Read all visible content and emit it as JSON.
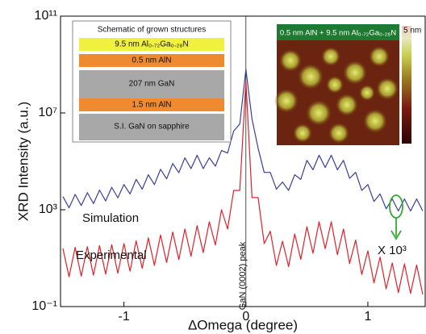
{
  "chart_data": {
    "type": "line",
    "x_label": "ΔOmega (degree)",
    "y_label": "XRD Intensity (a.u.)",
    "log_y": true,
    "xlim": [
      -1.52,
      1.47
    ],
    "xticks": [
      -1,
      0,
      1
    ],
    "ylim": [
      0.1,
      100000000000.0
    ],
    "yticks": [
      {
        "value": 100000000000.0,
        "label": "10¹¹"
      },
      {
        "value": 10000000.0,
        "label": "10⁷"
      },
      {
        "value": 1000,
        "label": "10³"
      },
      {
        "value": 0.1,
        "label": "10⁻¹"
      }
    ],
    "x": [
      -1.5,
      -1.45,
      -1.4,
      -1.35,
      -1.3,
      -1.25,
      -1.2,
      -1.15,
      -1.1,
      -1.05,
      -1.0,
      -0.95,
      -0.9,
      -0.85,
      -0.8,
      -0.75,
      -0.7,
      -0.65,
      -0.6,
      -0.55,
      -0.5,
      -0.45,
      -0.4,
      -0.35,
      -0.3,
      -0.25,
      -0.2,
      -0.15,
      -0.1,
      -0.05,
      0,
      0.05,
      0.1,
      0.15,
      0.2,
      0.25,
      0.3,
      0.35,
      0.4,
      0.45,
      0.5,
      0.55,
      0.6,
      0.65,
      0.7,
      0.75,
      0.8,
      0.85,
      0.9,
      0.95,
      1.0,
      1.05,
      1.1,
      1.15,
      1.2,
      1.25,
      1.3,
      1.35,
      1.4,
      1.45
    ],
    "series": [
      {
        "name": "Simulation",
        "color": "#3a3f9a",
        "values": [
          3500,
          1200,
          4300,
          1500,
          5100,
          1800,
          6500,
          2300,
          8500,
          3100,
          11000,
          4500,
          18000,
          7100,
          28000,
          11000,
          47000,
          19000,
          81000,
          34000,
          140000,
          50000,
          180000,
          50000,
          140000,
          63000,
          280000,
          220000,
          1800000,
          3500000,
          630000000,
          5600000,
          350000,
          35000,
          35000,
          7100,
          14000,
          6300,
          28000,
          18000,
          110000,
          45000,
          180000,
          56000,
          180000,
          45000,
          110000,
          20000,
          35000,
          6300,
          11000,
          2200,
          4500,
          1100,
          2800,
          890,
          2800,
          890,
          2800,
          890
        ]
      },
      {
        "name": "Experimental",
        "color": "#e0202a",
        "values": [
          25,
          1.7,
          28,
          1.8,
          30,
          2.0,
          33,
          2.2,
          36,
          2.4,
          40,
          2.9,
          52,
          3.8,
          69,
          5.0,
          91,
          6.6,
          120,
          8.7,
          160,
          12,
          220,
          17,
          320,
          35,
          1000,
          160,
          6300,
          6300,
          200000000,
          3200,
          3200,
          40,
          130,
          5.0,
          50,
          4.5,
          100,
          8.9,
          200,
          16,
          320,
          25,
          320,
          14,
          160,
          6.0,
          56,
          2.1,
          20,
          0.95,
          11,
          0.54,
          6.3,
          0.38,
          5.8,
          0.35,
          5.2,
          0.32
        ]
      }
    ],
    "annotations": {
      "peak": "GaN (0002) peak",
      "scale": "X 10³"
    },
    "inset_schematic": {
      "title": "Schematic of grown structures",
      "layers": [
        "9.5 nm Al₀.₇₂Ga₀.₂₈N",
        "0.5 nm AlN",
        "207 nm GaN",
        "1.5 nm AlN",
        "S.I. GaN on sapphire"
      ]
    },
    "inset_afm": {
      "title": "0.5 nm AlN + 9.5 nm Al₀.₇₂Ga₀.₂₈N",
      "scale_label": "5 nm"
    }
  }
}
